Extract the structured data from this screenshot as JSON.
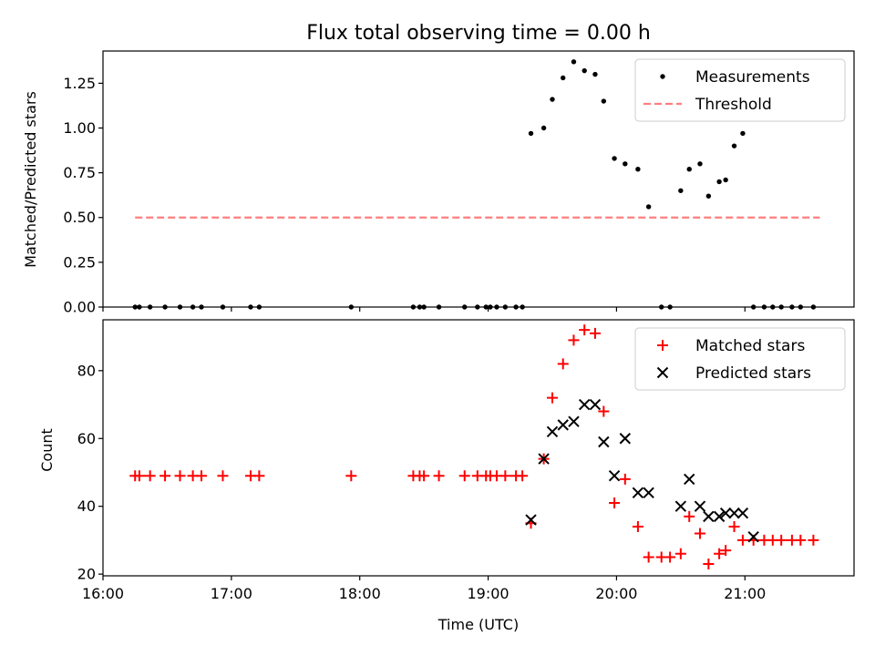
{
  "chart_data": [
    {
      "type": "scatter",
      "title": "Flux total observing time = 0.00 h",
      "xlabel": "",
      "ylabel": "Matched/Predicted stars",
      "xlim": [
        "16:00",
        "21:51"
      ],
      "ylim": [
        0,
        1.43
      ],
      "yticks": [
        "0.00",
        "0.25",
        "0.50",
        "0.75",
        "1.00",
        "1.25"
      ],
      "ytick_values": [
        0,
        0.25,
        0.5,
        0.75,
        1.0,
        1.25
      ],
      "legend_position": "top-right",
      "series": [
        {
          "name": "Measurements",
          "marker": "dot",
          "color": "#000000",
          "x": [
            "16:15",
            "16:17",
            "16:22",
            "16:29",
            "16:36",
            "16:42",
            "16:46",
            "16:56",
            "17:09",
            "17:13",
            "17:56",
            "18:25",
            "18:28",
            "18:30",
            "18:37",
            "18:49",
            "18:55",
            "18:59",
            "19:01",
            "19:04",
            "19:08",
            "19:13",
            "19:16",
            "19:20",
            "19:26",
            "19:30",
            "19:35",
            "19:40",
            "19:45",
            "19:50",
            "19:54",
            "19:59",
            "20:04",
            "20:10",
            "20:15",
            "20:21",
            "20:25",
            "20:30",
            "20:34",
            "20:39",
            "20:43",
            "20:48",
            "20:51",
            "20:55",
            "20:59",
            "21:04",
            "21:09",
            "21:13",
            "21:17",
            "21:22",
            "21:26",
            "21:32"
          ],
          "y": [
            0,
            0,
            0,
            0,
            0,
            0,
            0,
            0,
            0,
            0,
            0,
            0,
            0,
            0,
            0,
            0,
            0,
            0,
            0,
            0,
            0,
            0,
            0,
            0.97,
            1.0,
            1.16,
            1.28,
            1.37,
            1.32,
            1.3,
            1.15,
            0.83,
            0.8,
            0.77,
            0.56,
            0,
            0,
            0.65,
            0.77,
            0.8,
            0.62,
            0.7,
            0.71,
            0.9,
            0.97,
            0,
            0,
            0,
            0,
            0,
            0,
            0
          ]
        },
        {
          "name": "Threshold",
          "style": "dashed",
          "color": "#ff7f7f",
          "x": [
            "16:15",
            "21:35"
          ],
          "y": [
            0.5,
            0.5
          ]
        }
      ]
    },
    {
      "type": "scatter",
      "title": "",
      "xlabel": "Time (UTC)",
      "ylabel": "Count",
      "xlim": [
        "16:00",
        "21:51"
      ],
      "ylim": [
        19.5,
        95
      ],
      "yticks": [
        "20",
        "40",
        "60",
        "80"
      ],
      "ytick_values": [
        20,
        40,
        60,
        80
      ],
      "xticks": [
        "16:00",
        "17:00",
        "18:00",
        "19:00",
        "20:00",
        "21:00"
      ],
      "legend_position": "top-right",
      "series": [
        {
          "name": "Matched stars",
          "marker": "plus",
          "color": "#ff0000",
          "x": [
            "16:15",
            "16:17",
            "16:22",
            "16:29",
            "16:36",
            "16:42",
            "16:46",
            "16:56",
            "17:09",
            "17:13",
            "17:56",
            "18:25",
            "18:28",
            "18:30",
            "18:37",
            "18:49",
            "18:55",
            "18:59",
            "19:01",
            "19:04",
            "19:08",
            "19:13",
            "19:16",
            "19:20",
            "19:26",
            "19:30",
            "19:35",
            "19:40",
            "19:45",
            "19:50",
            "19:54",
            "19:59",
            "20:04",
            "20:10",
            "20:15",
            "20:21",
            "20:25",
            "20:30",
            "20:34",
            "20:39",
            "20:43",
            "20:48",
            "20:51",
            "20:55",
            "20:59",
            "21:04",
            "21:09",
            "21:13",
            "21:17",
            "21:22",
            "21:26",
            "21:32"
          ],
          "y": [
            49,
            49,
            49,
            49,
            49,
            49,
            49,
            49,
            49,
            49,
            49,
            49,
            49,
            49,
            49,
            49,
            49,
            49,
            49,
            49,
            49,
            49,
            49,
            35,
            54,
            72,
            82,
            89,
            92,
            91,
            68,
            41,
            48,
            34,
            25,
            25,
            25,
            26,
            37,
            32,
            23,
            26,
            27,
            34,
            30,
            30,
            30,
            30,
            30,
            30,
            30,
            30
          ]
        },
        {
          "name": "Predicted stars",
          "marker": "x",
          "color": "#000000",
          "x": [
            "19:20",
            "19:26",
            "19:30",
            "19:35",
            "19:40",
            "19:45",
            "19:50",
            "19:54",
            "19:59",
            "20:04",
            "20:10",
            "20:15",
            "20:30",
            "20:34",
            "20:39",
            "20:43",
            "20:48",
            "20:51",
            "20:55",
            "20:59",
            "21:04"
          ],
          "y": [
            36,
            54,
            62,
            64,
            65,
            70,
            70,
            59,
            49,
            60,
            44,
            44,
            40,
            48,
            40,
            37,
            37,
            38,
            38,
            38,
            31
          ]
        }
      ]
    }
  ]
}
